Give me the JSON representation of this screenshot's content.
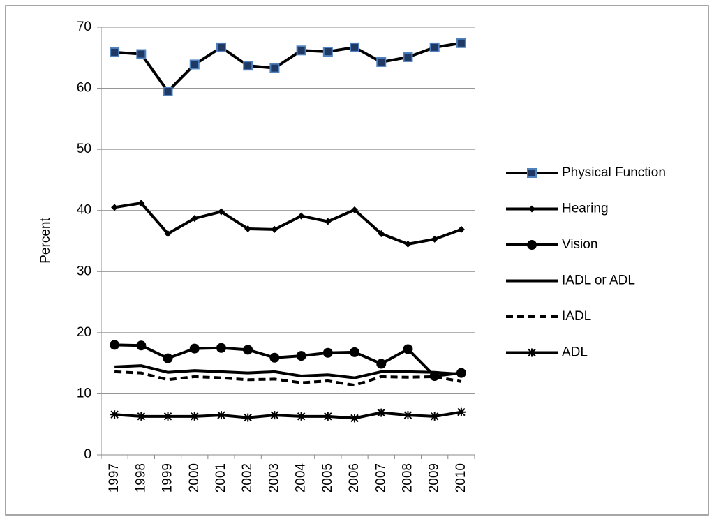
{
  "chart_data": {
    "type": "line",
    "y_label": "Percent",
    "categories": [
      "1997",
      "1998",
      "1999",
      "2000",
      "2001",
      "2002",
      "2003",
      "2004",
      "2005",
      "2006",
      "2007",
      "2008",
      "2009",
      "2010"
    ],
    "series": [
      {
        "name": "Physical Function",
        "color": "#000000",
        "marker": "square",
        "marker_color": "#1f3864",
        "marker_edge": "#4f81bd",
        "dash": false,
        "values": [
          65.9,
          65.6,
          59.5,
          63.9,
          66.7,
          63.7,
          63.3,
          66.2,
          66.0,
          66.7,
          64.3,
          65.1,
          66.7,
          67.4
        ]
      },
      {
        "name": "Hearing",
        "color": "#000000",
        "marker": "diamond",
        "dash": false,
        "values": [
          40.5,
          41.2,
          36.2,
          38.7,
          39.8,
          37.0,
          36.9,
          39.1,
          38.2,
          40.1,
          36.2,
          34.5,
          35.3,
          36.9
        ]
      },
      {
        "name": "Vision",
        "color": "#000000",
        "marker": "circle",
        "dash": false,
        "values": [
          18.0,
          17.9,
          15.8,
          17.4,
          17.5,
          17.2,
          15.9,
          16.2,
          16.7,
          16.8,
          14.9,
          17.3,
          12.9,
          13.4
        ]
      },
      {
        "name": "IADL or ADL",
        "color": "#000000",
        "marker": "none",
        "dash": false,
        "values": [
          14.4,
          14.6,
          13.5,
          13.8,
          13.6,
          13.4,
          13.6,
          12.9,
          13.1,
          12.6,
          13.6,
          13.6,
          13.5,
          13.2
        ]
      },
      {
        "name": "IADL",
        "color": "#000000",
        "marker": "none",
        "dash": true,
        "values": [
          13.6,
          13.4,
          12.3,
          12.8,
          12.6,
          12.3,
          12.4,
          11.8,
          12.1,
          11.4,
          12.8,
          12.7,
          12.8,
          12.0
        ]
      },
      {
        "name": "ADL",
        "color": "#000000",
        "marker": "star",
        "dash": false,
        "values": [
          6.6,
          6.3,
          6.3,
          6.3,
          6.5,
          6.1,
          6.5,
          6.3,
          6.3,
          6.0,
          6.9,
          6.5,
          6.3,
          7.0
        ]
      }
    ],
    "ylim": [
      0,
      70
    ],
    "yticks": [
      0,
      10,
      20,
      30,
      40,
      50,
      60,
      70
    ],
    "grid": true,
    "legend": "right"
  }
}
